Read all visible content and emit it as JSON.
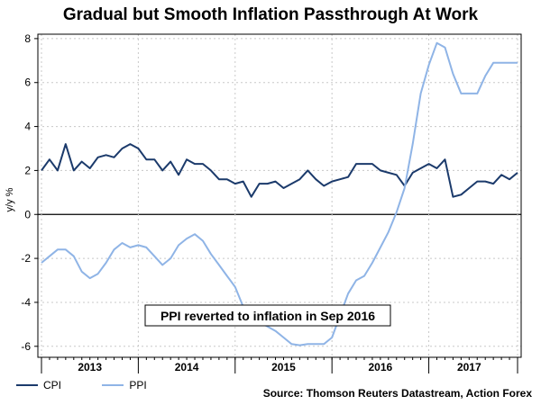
{
  "chart_data": {
    "type": "line",
    "title": "Gradual but Smooth Inflation Passthrough At Work",
    "ylabel": "y/y %",
    "xlabel": "",
    "ylim": [
      -6.5,
      8.2
    ],
    "yticks": [
      8,
      6,
      4,
      2,
      0,
      -2,
      -4,
      -6
    ],
    "grid": true,
    "x_start_month": 0,
    "year_labels": [
      {
        "label": "2013",
        "month": 6
      },
      {
        "label": "2014",
        "month": 18
      },
      {
        "label": "2015",
        "month": 30
      },
      {
        "label": "2016",
        "month": 42
      },
      {
        "label": "2017",
        "month": 53
      }
    ],
    "year_boundaries": [
      0,
      12,
      24,
      36,
      48,
      59
    ],
    "series": [
      {
        "name": "CPI",
        "color": "#1b3a6b",
        "values": [
          2.0,
          2.5,
          2.0,
          3.2,
          2.0,
          2.4,
          2.1,
          2.6,
          2.7,
          2.6,
          3.0,
          3.2,
          3.0,
          2.5,
          2.5,
          2.0,
          2.4,
          1.8,
          2.5,
          2.3,
          2.3,
          2.0,
          1.6,
          1.6,
          1.4,
          1.5,
          0.8,
          1.4,
          1.4,
          1.5,
          1.2,
          1.4,
          1.6,
          2.0,
          1.6,
          1.3,
          1.5,
          1.6,
          1.7,
          2.3,
          2.3,
          2.3,
          2.0,
          1.9,
          1.8,
          1.3,
          1.9,
          2.1,
          2.3,
          2.1,
          2.5,
          0.8,
          0.9,
          1.2,
          1.5,
          1.5,
          1.4,
          1.8,
          1.6,
          1.9
        ]
      },
      {
        "name": "PPI",
        "color": "#8fb4e6",
        "values": [
          -2.2,
          -1.9,
          -1.6,
          -1.6,
          -1.9,
          -2.6,
          -2.9,
          -2.7,
          -2.2,
          -1.6,
          -1.3,
          -1.5,
          -1.4,
          -1.5,
          -1.9,
          -2.3,
          -2.0,
          -1.4,
          -1.1,
          -0.9,
          -1.2,
          -1.8,
          -2.3,
          -2.8,
          -3.3,
          -4.2,
          -4.7,
          -4.9,
          -5.1,
          -5.3,
          -5.6,
          -5.9,
          -5.95,
          -5.9,
          -5.9,
          -5.9,
          -5.6,
          -4.6,
          -3.6,
          -3.0,
          -2.8,
          -2.2,
          -1.5,
          -0.8,
          0.1,
          1.2,
          3.2,
          5.5,
          6.8,
          7.8,
          7.6,
          6.4,
          5.5,
          5.5,
          5.5,
          6.3,
          6.9,
          6.9,
          6.9,
          6.9
        ]
      }
    ],
    "annotation": "PPI reverted to inflation in Sep 2016"
  },
  "legend": {
    "items": [
      {
        "label": "CPI",
        "color": "#1b3a6b"
      },
      {
        "label": "PPI",
        "color": "#8fb4e6"
      }
    ]
  },
  "source": "Source: Thomson Reuters Datastream, Action Forex"
}
